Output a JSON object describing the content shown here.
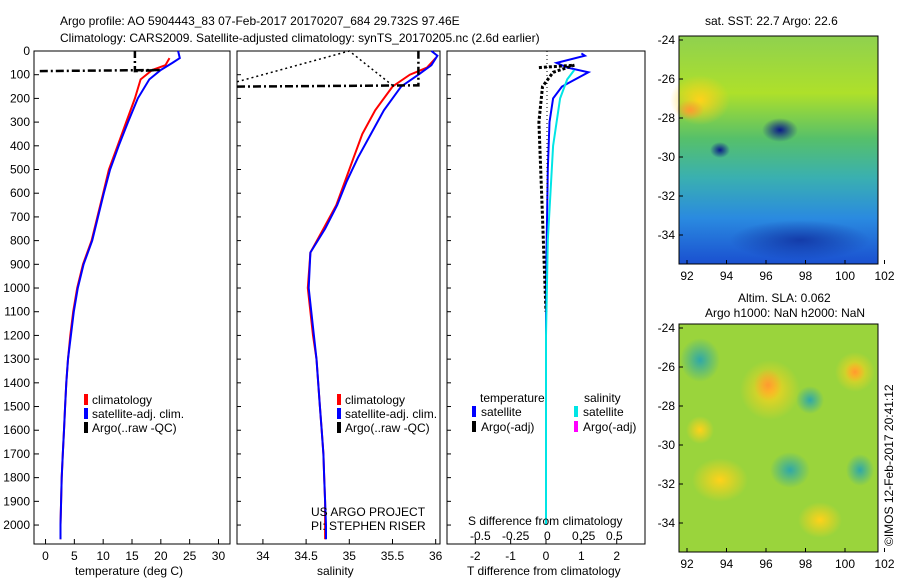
{
  "header": {
    "line1": "Argo profile: AO 5904443_83 07-Feb-2017 20170207_684 29.732S 97.46E",
    "line2": "Climatology: CARS2009. Satellite-adjusted climatology: synTS_20170205.nc (2.6d earlier)"
  },
  "colors": {
    "climatology": "#ff0000",
    "satellite": "#0000ff",
    "argo": "#000000",
    "salinity_satellite": "#00e5e5",
    "salinity_argo": "#ff00ff"
  },
  "chart_data": [
    {
      "type": "line",
      "name": "temperature",
      "xlabel": "temperature (deg C)",
      "ylabel": "",
      "xlim": [
        -2,
        32
      ],
      "ylim": [
        2080,
        0
      ],
      "xticks": [
        "0",
        "5",
        "10",
        "15",
        "20",
        "25",
        "30"
      ],
      "yticks": [
        "0",
        "100",
        "200",
        "300",
        "400",
        "500",
        "600",
        "700",
        "800",
        "900",
        "1000",
        "1100",
        "1200",
        "1300",
        "1400",
        "1500",
        "1600",
        "1700",
        "1800",
        "1900",
        "2000"
      ],
      "legend": [
        "climatology",
        "satellite-adj. clim.",
        "Argo(..raw -QC)"
      ],
      "series": [
        {
          "name": "climatology",
          "color": "red",
          "points": [
            [
              21.5,
              30
            ],
            [
              20.8,
              60
            ],
            [
              18.5,
              80
            ],
            [
              16.5,
              120
            ],
            [
              15.5,
              200
            ],
            [
              14,
              300
            ],
            [
              12.5,
              400
            ],
            [
              11,
              500
            ],
            [
              10,
              600
            ],
            [
              9,
              700
            ],
            [
              8,
              800
            ],
            [
              6.5,
              900
            ],
            [
              5.5,
              1000
            ],
            [
              4.8,
              1100
            ],
            [
              4.3,
              1200
            ],
            [
              3.9,
              1300
            ],
            [
              3.6,
              1400
            ],
            [
              3.4,
              1500
            ],
            [
              3.2,
              1600
            ],
            [
              3,
              1700
            ],
            [
              2.8,
              1800
            ],
            [
              2.7,
              1900
            ],
            [
              2.6,
              2000
            ],
            [
              2.6,
              2060
            ]
          ]
        },
        {
          "name": "satellite-adj. clim.",
          "color": "blue",
          "points": [
            [
              23,
              0
            ],
            [
              23.3,
              30
            ],
            [
              22,
              50
            ],
            [
              20,
              80
            ],
            [
              18,
              120
            ],
            [
              16,
              200
            ],
            [
              14.3,
              300
            ],
            [
              12.7,
              400
            ],
            [
              11.2,
              500
            ],
            [
              10.1,
              600
            ],
            [
              9.1,
              700
            ],
            [
              8.1,
              800
            ],
            [
              6.6,
              900
            ],
            [
              5.6,
              1000
            ],
            [
              4.9,
              1100
            ],
            [
              4.4,
              1200
            ],
            [
              3.9,
              1300
            ],
            [
              3.6,
              1400
            ],
            [
              3.4,
              1500
            ],
            [
              3.2,
              1600
            ],
            [
              3,
              1700
            ],
            [
              2.8,
              1800
            ],
            [
              2.7,
              1900
            ],
            [
              2.6,
              2000
            ],
            [
              2.6,
              2060
            ]
          ]
        },
        {
          "name": "Argo",
          "color": "black",
          "points": [
            [
              -1,
              85
            ],
            [
              20,
              80
            ],
            [
              15.5,
              85
            ],
            [
              15.5,
              0
            ]
          ]
        }
      ]
    },
    {
      "type": "line",
      "name": "salinity",
      "xlabel": "salinity",
      "xlim": [
        33.7,
        36.05
      ],
      "ylim": [
        2080,
        0
      ],
      "xticks": [
        "34",
        "34.5",
        "35",
        "35.5",
        "36"
      ],
      "legend": [
        "climatology",
        "satellite-adj. clim.",
        "Argo(..raw -QC)"
      ],
      "annotation": [
        "US ARGO PROJECT",
        "PI: STEPHEN RISER"
      ],
      "series": [
        {
          "name": "climatology",
          "color": "red",
          "points": [
            [
              36,
              30
            ],
            [
              35.9,
              70
            ],
            [
              35.7,
              100
            ],
            [
              35.5,
              150
            ],
            [
              35.3,
              250
            ],
            [
              35.15,
              350
            ],
            [
              35.05,
              450
            ],
            [
              34.95,
              550
            ],
            [
              34.85,
              650
            ],
            [
              34.7,
              750
            ],
            [
              34.55,
              850
            ],
            [
              34.52,
              1000
            ],
            [
              34.55,
              1100
            ],
            [
              34.58,
              1200
            ],
            [
              34.62,
              1300
            ],
            [
              34.64,
              1400
            ],
            [
              34.66,
              1500
            ],
            [
              34.68,
              1600
            ],
            [
              34.7,
              1700
            ],
            [
              34.71,
              1800
            ],
            [
              34.72,
              1900
            ],
            [
              34.72,
              2000
            ],
            [
              34.72,
              2060
            ]
          ]
        },
        {
          "name": "satellite-adj. clim.",
          "color": "blue",
          "points": [
            [
              35.95,
              0
            ],
            [
              36.02,
              20
            ],
            [
              35.95,
              60
            ],
            [
              35.8,
              100
            ],
            [
              35.6,
              150
            ],
            [
              35.4,
              250
            ],
            [
              35.25,
              350
            ],
            [
              35.1,
              450
            ],
            [
              34.97,
              550
            ],
            [
              34.86,
              650
            ],
            [
              34.72,
              750
            ],
            [
              34.55,
              850
            ],
            [
              34.53,
              1000
            ],
            [
              34.56,
              1100
            ],
            [
              34.59,
              1200
            ],
            [
              34.62,
              1300
            ],
            [
              34.64,
              1400
            ],
            [
              34.66,
              1500
            ],
            [
              34.68,
              1600
            ],
            [
              34.7,
              1700
            ],
            [
              34.71,
              1800
            ],
            [
              34.72,
              1900
            ],
            [
              34.73,
              2000
            ],
            [
              34.73,
              2060
            ]
          ]
        },
        {
          "name": "Argo",
          "color": "black",
          "points": [
            [
              33.7,
              150
            ],
            [
              35.7,
              145
            ],
            [
              35.8,
              145
            ],
            [
              35.8,
              0
            ]
          ]
        },
        {
          "name": "Argo-dotted",
          "color": "black",
          "points": [
            [
              33.7,
              130
            ],
            [
              35.0,
              0
            ],
            [
              35.5,
              145
            ]
          ]
        }
      ]
    },
    {
      "type": "line",
      "name": "difference",
      "xlabel": "T difference from climatology",
      "xlabel2": "S difference from climatology",
      "xlim": [
        -2.8,
        2.8
      ],
      "xticks": [
        "-2",
        "-1",
        "0",
        "1",
        "2"
      ],
      "xticks_s": [
        "-0.5",
        "-0.25",
        "0",
        "0.25",
        "0.5"
      ],
      "legend": {
        "temperature": [
          "satellite",
          "Argo(-adj)"
        ],
        "salinity": [
          "satellite",
          "Argo(-adj)"
        ]
      },
      "series": [
        {
          "name": "temperature satellite",
          "color": "blue",
          "points": [
            [
              1,
              10
            ],
            [
              1.1,
              20
            ],
            [
              0.3,
              50
            ],
            [
              0.6,
              70
            ],
            [
              1.2,
              90
            ],
            [
              0.7,
              130
            ],
            [
              0.45,
              150
            ],
            [
              0.2,
              200
            ],
            [
              0.1,
              300
            ],
            [
              0.05,
              500
            ],
            [
              0.02,
              800
            ],
            [
              0,
              1000
            ],
            [
              0,
              1500
            ],
            [
              0,
              2000
            ]
          ]
        },
        {
          "name": "temperature Argo",
          "color": "black",
          "points": [
            [
              -0.2,
              70
            ],
            [
              0.8,
              60
            ],
            [
              0.2,
              90
            ],
            [
              -0.1,
              150
            ],
            [
              -0.2,
              300
            ],
            [
              -0.15,
              500
            ],
            [
              -0.1,
              700
            ],
            [
              -0.05,
              900
            ],
            [
              0,
              1100
            ]
          ]
        },
        {
          "name": "salinity satellite",
          "color": "cyan",
          "points": [
            [
              0.8,
              80
            ],
            [
              0.6,
              120
            ],
            [
              0.4,
              200
            ],
            [
              0.2,
              400
            ],
            [
              0.05,
              800
            ],
            [
              0,
              1200
            ],
            [
              0,
              2000
            ]
          ]
        }
      ]
    },
    {
      "type": "heatmap",
      "name": "sat-sst",
      "title": "sat. SST: 22.7  Argo: 22.6",
      "xticks": [
        "92",
        "94",
        "96",
        "98",
        "100",
        "102"
      ],
      "yticks": [
        "-24",
        "-26",
        "-28",
        "-30",
        "-32",
        "-34"
      ]
    },
    {
      "type": "heatmap",
      "name": "sla",
      "title1": "Altim. SLA: 0.062",
      "title2": "Argo h1000: NaN h2000: NaN",
      "xticks": [
        "92",
        "94",
        "96",
        "98",
        "100",
        "102"
      ],
      "yticks": [
        "-24",
        "-26",
        "-28",
        "-30",
        "-32",
        "-34"
      ]
    }
  ],
  "footer_credit": "©IMOS 12-Feb-2017 20:41:12"
}
